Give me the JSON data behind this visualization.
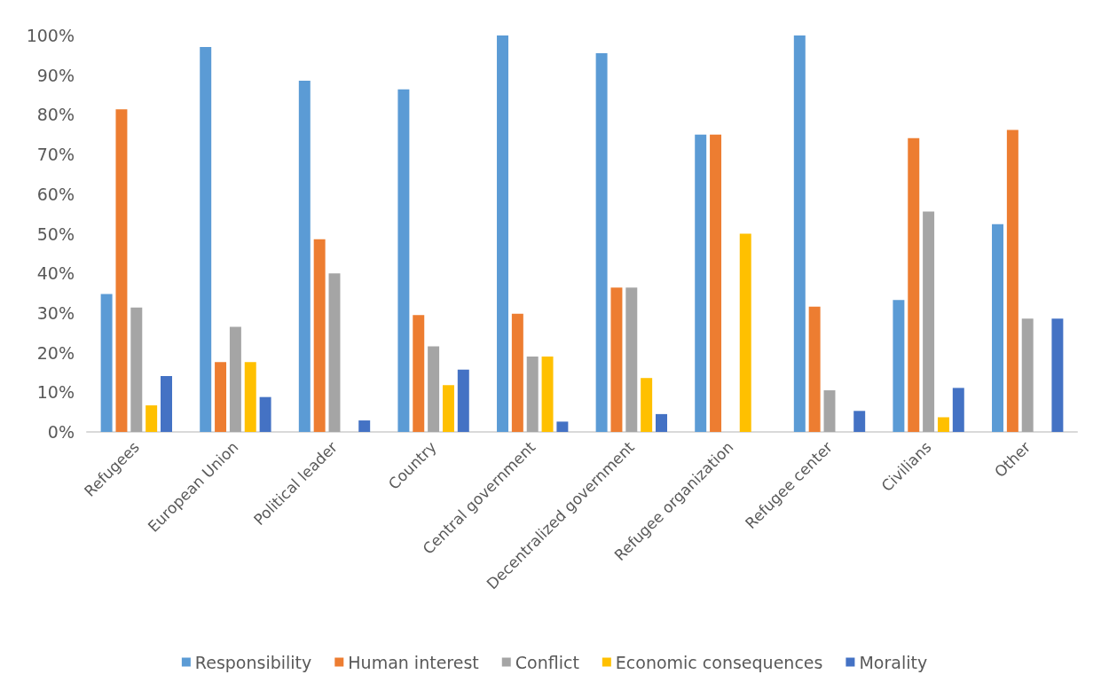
{
  "chart_data": {
    "type": "bar",
    "categories": [
      "Refugees",
      "European Union",
      "Political leader",
      "Country",
      "Central government",
      "Decentralized government",
      "Refugee organization",
      "Refugee center",
      "Civilians",
      "Other"
    ],
    "series": [
      {
        "name": "Responsibility",
        "color": "#5b9bd5",
        "values": [
          34.8,
          97.1,
          88.6,
          86.4,
          100,
          95.5,
          75,
          100,
          33.3,
          52.4
        ]
      },
      {
        "name": "Human interest",
        "color": "#ed7d31",
        "values": [
          81.4,
          17.6,
          48.6,
          29.5,
          29.8,
          36.4,
          75,
          31.6,
          74.1,
          76.2
        ]
      },
      {
        "name": "Conflict",
        "color": "#a5a5a5",
        "values": [
          31.4,
          26.5,
          40,
          21.6,
          19,
          36.4,
          0,
          10.5,
          55.6,
          28.6
        ]
      },
      {
        "name": "Economic consequences",
        "color": "#ffc000",
        "values": [
          6.7,
          17.6,
          0,
          11.8,
          19,
          13.6,
          50,
          0,
          3.7,
          0
        ]
      },
      {
        "name": "Morality",
        "color": "#4472c4",
        "values": [
          14.1,
          8.8,
          2.9,
          15.7,
          2.6,
          4.5,
          0,
          5.3,
          11.1,
          28.6
        ]
      }
    ],
    "ylim": [
      0,
      100
    ],
    "yticks": [
      {
        "value": 0,
        "label": "0%"
      },
      {
        "value": 10,
        "label": "10%"
      },
      {
        "value": 20,
        "label": "20%"
      },
      {
        "value": 30,
        "label": "30%"
      },
      {
        "value": 40,
        "label": "40%"
      },
      {
        "value": 50,
        "label": "50%"
      },
      {
        "value": 60,
        "label": "60%"
      },
      {
        "value": 70,
        "label": "70%"
      },
      {
        "value": 80,
        "label": "80%"
      },
      {
        "value": 90,
        "label": "90%"
      },
      {
        "value": 100,
        "label": "100%"
      }
    ],
    "grid": false,
    "legend": "bottom"
  }
}
